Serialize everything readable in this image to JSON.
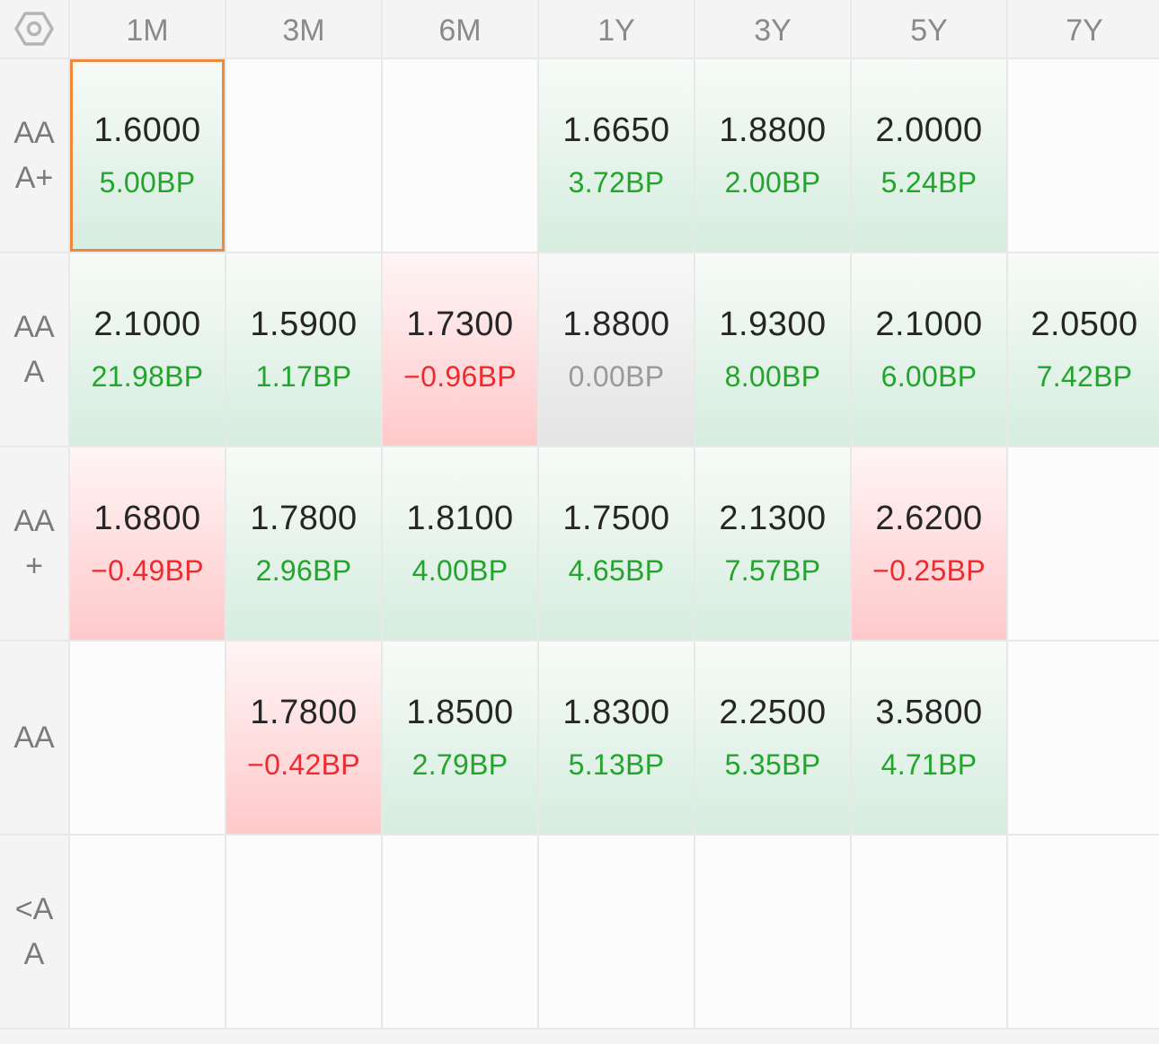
{
  "settings_icon": "hexagon-settings-icon",
  "colors": {
    "up": "#21a52b",
    "down": "#ee2a2e",
    "flat": "#999999",
    "selected_border": "#f0883e"
  },
  "selected_cell": {
    "row": 0,
    "col": 0
  },
  "columns": [
    "1M",
    "3M",
    "6M",
    "1Y",
    "3Y",
    "5Y",
    "7Y"
  ],
  "rows": [
    {
      "label": "AAA+",
      "cells": [
        {
          "rate": "1.6000",
          "change": "5.00BP",
          "trend": "up"
        },
        null,
        null,
        {
          "rate": "1.6650",
          "change": "3.72BP",
          "trend": "up"
        },
        {
          "rate": "1.8800",
          "change": "2.00BP",
          "trend": "up"
        },
        {
          "rate": "2.0000",
          "change": "5.24BP",
          "trend": "up"
        },
        null
      ]
    },
    {
      "label": "AAA",
      "cells": [
        {
          "rate": "2.1000",
          "change": "21.98BP",
          "trend": "up"
        },
        {
          "rate": "1.5900",
          "change": "1.17BP",
          "trend": "up"
        },
        {
          "rate": "1.7300",
          "change": "−0.96BP",
          "trend": "down"
        },
        {
          "rate": "1.8800",
          "change": "0.00BP",
          "trend": "flat"
        },
        {
          "rate": "1.9300",
          "change": "8.00BP",
          "trend": "up"
        },
        {
          "rate": "2.1000",
          "change": "6.00BP",
          "trend": "up"
        },
        {
          "rate": "2.0500",
          "change": "7.42BP",
          "trend": "up"
        }
      ]
    },
    {
      "label": "AA+",
      "cells": [
        {
          "rate": "1.6800",
          "change": "−0.49BP",
          "trend": "down"
        },
        {
          "rate": "1.7800",
          "change": "2.96BP",
          "trend": "up"
        },
        {
          "rate": "1.8100",
          "change": "4.00BP",
          "trend": "up"
        },
        {
          "rate": "1.7500",
          "change": "4.65BP",
          "trend": "up"
        },
        {
          "rate": "2.1300",
          "change": "7.57BP",
          "trend": "up"
        },
        {
          "rate": "2.6200",
          "change": "−0.25BP",
          "trend": "down"
        },
        null
      ]
    },
    {
      "label": "AA",
      "cells": [
        null,
        {
          "rate": "1.7800",
          "change": "−0.42BP",
          "trend": "down"
        },
        {
          "rate": "1.8500",
          "change": "2.79BP",
          "trend": "up"
        },
        {
          "rate": "1.8300",
          "change": "5.13BP",
          "trend": "up"
        },
        {
          "rate": "2.2500",
          "change": "5.35BP",
          "trend": "up"
        },
        {
          "rate": "3.5800",
          "change": "4.71BP",
          "trend": "up"
        },
        null
      ]
    },
    {
      "label": "<AA",
      "cells": [
        null,
        null,
        null,
        null,
        null,
        null,
        null
      ]
    }
  ]
}
